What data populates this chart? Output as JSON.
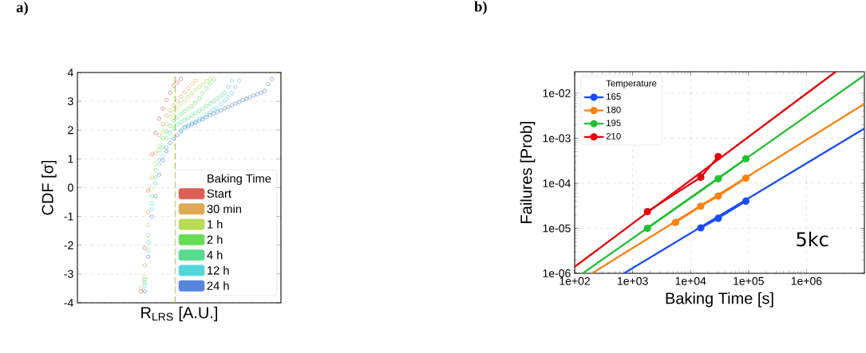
{
  "chart_data": [
    {
      "type": "scatter",
      "title": "a)",
      "xlabel": "R$_{LRS}$ [A.U.]",
      "ylabel": "CDF [σ]",
      "legend_title": "Baking Time",
      "grid": "y",
      "legend": "bottom right",
      "marker": "circle",
      "categories": [
        null,
        null,
        null,
        null,
        null,
        null,
        null,
        null,
        null,
        null,
        null,
        null,
        null,
        null,
        null,
        null,
        null,
        null,
        null,
        null,
        null,
        null,
        null,
        null,
        null,
        null,
        null,
        null,
        null,
        null,
        null,
        null,
        null,
        null,
        null,
        null,
        null,
        null,
        null,
        null,
        null,
        null,
        null,
        null,
        null,
        null,
        null,
        null,
        null,
        null,
        null,
        null,
        null,
        null,
        null,
        null
      ],
      "ylim": [
        -4,
        4
      ],
      "yticks": [
        -4,
        -3,
        -2,
        -1,
        0,
        1,
        2,
        3,
        4
      ],
      "series": [
        {
          "name": "Start",
          "color": "#dc5f55",
          "values": [
            null,
            null,
            null,
            null,
            null,
            null,
            null,
            null,
            null,
            null,
            null,
            null,
            null,
            null,
            null,
            null,
            null,
            -3.6,
            -2.1,
            -0.1,
            1.15,
            1.9,
            2.4,
            2.75,
            3.05,
            3.3,
            3.55,
            3.65,
            3.78,
            null,
            null,
            null,
            null,
            null,
            null,
            null,
            null,
            null,
            null,
            null,
            null,
            null,
            null,
            null,
            null,
            null,
            null,
            null,
            null,
            null,
            null,
            null,
            null,
            null,
            null,
            null
          ]
        },
        {
          "name": "30 min",
          "color": "#dcaa55",
          "values": [
            null,
            null,
            null,
            null,
            null,
            null,
            null,
            null,
            null,
            null,
            null,
            null,
            null,
            null,
            null,
            null,
            null,
            -3.5,
            -2.7,
            -0.85,
            0.35,
            1.2,
            1.82,
            2.2,
            2.5,
            2.69,
            2.86,
            3.0,
            3.16,
            3.32,
            3.46,
            3.6,
            3.72,
            null,
            null,
            null,
            null,
            null,
            null,
            null,
            null,
            null,
            null,
            null,
            null,
            null,
            null,
            null,
            null,
            null,
            null,
            null,
            null,
            null,
            null,
            null
          ]
        },
        {
          "name": "1 h",
          "color": "#b8dc55",
          "values": [
            null,
            null,
            null,
            null,
            null,
            null,
            null,
            null,
            null,
            null,
            null,
            null,
            null,
            null,
            null,
            null,
            null,
            null,
            -3.1,
            -1.3,
            0,
            0.82,
            1.45,
            1.92,
            2.22,
            2.46,
            2.61,
            2.76,
            2.9,
            3.03,
            3.15,
            3.27,
            3.4,
            3.5,
            3.6,
            3.7,
            3.78,
            null,
            null,
            null,
            null,
            null,
            null,
            null,
            null,
            null,
            null,
            null,
            null,
            null,
            null,
            null,
            null,
            null,
            null,
            null
          ]
        },
        {
          "name": "2 h",
          "color": "#67dc55",
          "values": [
            null,
            null,
            null,
            null,
            null,
            null,
            null,
            null,
            null,
            null,
            null,
            null,
            null,
            null,
            null,
            null,
            null,
            null,
            -3.2,
            -1.65,
            -0.3,
            0.6,
            1.3,
            1.72,
            1.95,
            2.15,
            2.32,
            2.43,
            2.56,
            2.65,
            2.75,
            2.83,
            2.95,
            3.1,
            3.28,
            3.45,
            3.62,
            3.75,
            null,
            null,
            null,
            null,
            null,
            null,
            null,
            null,
            null,
            null,
            null,
            null,
            null,
            null,
            null,
            null,
            null,
            null
          ]
        },
        {
          "name": "4 h",
          "color": "#55dc8f",
          "values": [
            null,
            null,
            null,
            null,
            null,
            null,
            null,
            null,
            null,
            null,
            null,
            null,
            null,
            null,
            null,
            null,
            null,
            null,
            -3.3,
            -2.2,
            -0.55,
            0.35,
            0.96,
            1.4,
            1.72,
            1.9,
            2.05,
            2.2,
            2.27,
            2.35,
            2.42,
            2.5,
            2.58,
            2.67,
            2.75,
            2.84,
            2.92,
            3.0,
            3.1,
            3.19,
            3.3,
            3.5,
            3.72,
            null,
            null,
            null,
            null,
            null,
            null,
            null,
            null,
            null,
            null,
            null,
            null,
            null
          ]
        },
        {
          "name": "12 h",
          "color": "#55d5dc",
          "values": [
            null,
            null,
            null,
            null,
            null,
            null,
            null,
            null,
            null,
            null,
            null,
            null,
            null,
            null,
            null,
            null,
            null,
            null,
            -3.4,
            -1.9,
            -0.75,
            0.15,
            0.8,
            1.1,
            1.4,
            null,
            null,
            null,
            2.0,
            2.12,
            2.18,
            2.24,
            2.3,
            2.38,
            2.46,
            2.54,
            2.62,
            2.7,
            2.78,
            2.9,
            3.02,
            3.14,
            3.28,
            3.5,
            3.72,
            null,
            null,
            null,
            null,
            null,
            null,
            null,
            null,
            null,
            null,
            null
          ]
        },
        {
          "name": "24 h",
          "color": "#5585dc",
          "values": [
            null,
            null,
            null,
            null,
            null,
            null,
            null,
            null,
            null,
            null,
            null,
            null,
            null,
            null,
            null,
            null,
            null,
            null,
            -3.6,
            -2.4,
            -1.0,
            -0.3,
            0.45,
            0.95,
            1.26,
            1.55,
            1.7,
            1.82,
            1.95,
            2.08,
            2.13,
            2.2,
            2.26,
            2.32,
            2.38,
            2.45,
            2.52,
            2.57,
            2.63,
            2.69,
            2.75,
            2.8,
            2.86,
            2.92,
            2.98,
            3.04,
            3.09,
            3.14,
            3.2,
            3.25,
            3.3,
            3.36,
            3.6,
            3.78,
            null,
            null
          ]
        }
      ]
    },
    {
      "type": "line",
      "title": "b)",
      "xlabel": "Baking Time [s]",
      "ylabel": "Failures [Prob]",
      "legend_title": "Temperature",
      "log": "xy",
      "grid": true,
      "legend": "top left",
      "annotations": [
        "5kc"
      ],
      "xlim": [
        100,
        10000000
      ],
      "xticks": [
        {
          "value": 100,
          "label": "1e+02"
        },
        {
          "value": 1000,
          "label": "1e+03"
        },
        {
          "value": 10000,
          "label": "1e+04"
        },
        {
          "value": 100000,
          "label": "1e+05"
        },
        {
          "value": 1000000,
          "label": "1e+06"
        }
      ],
      "ylim": [
        1e-06,
        0.03
      ],
      "yticks": [
        {
          "value": 1e-06,
          "label": "1e-06"
        },
        {
          "value": 1e-05,
          "label": "1e-05"
        },
        {
          "value": 0.0001,
          "label": "1e-04"
        },
        {
          "value": 0.001,
          "label": "1e-03"
        },
        {
          "value": 0.01,
          "label": "1e-02"
        }
      ],
      "series": [
        {
          "name": "165",
          "color": "#1a4cff",
          "marker": "circle",
          "x": [
            15000,
            30000,
            90000
          ],
          "values": [
            1.02e-05,
            1.67e-05,
            4e-05
          ]
        },
        {
          "name": "180",
          "color": "#ff8010",
          "marker": "circle",
          "x": [
            5500,
            15000,
            30000,
            90000
          ],
          "values": [
            1.35e-05,
            3.1e-05,
            5.2e-05,
            0.00013
          ]
        },
        {
          "name": "195",
          "color": "#22c032",
          "marker": "circle",
          "x": [
            1800,
            30000,
            90000
          ],
          "values": [
            1e-05,
            0.000126,
            0.00035
          ]
        },
        {
          "name": "210",
          "color": "#e8000b",
          "marker": "circle",
          "x": [
            1800,
            15000,
            30000
          ],
          "values": [
            2.35e-05,
            0.000136,
            0.00039
          ]
        },
        {
          "color": "#1a4cff",
          "marker": "none",
          "x": [
            710,
            10000000
          ],
          "values": [
            1e-06,
            0.00165
          ]
        },
        {
          "color": "#ff8010",
          "marker": "none",
          "x": [
            200,
            10000000
          ],
          "values": [
            1e-06,
            0.0058
          ]
        },
        {
          "color": "#22c032",
          "marker": "none",
          "x": [
            138,
            10000000
          ],
          "values": [
            1e-06,
            0.025
          ]
        },
        {
          "color": "#e8000b",
          "marker": "none",
          "x": [
            100,
            3200000
          ],
          "values": [
            1.4e-06,
            0.03
          ]
        }
      ]
    }
  ]
}
